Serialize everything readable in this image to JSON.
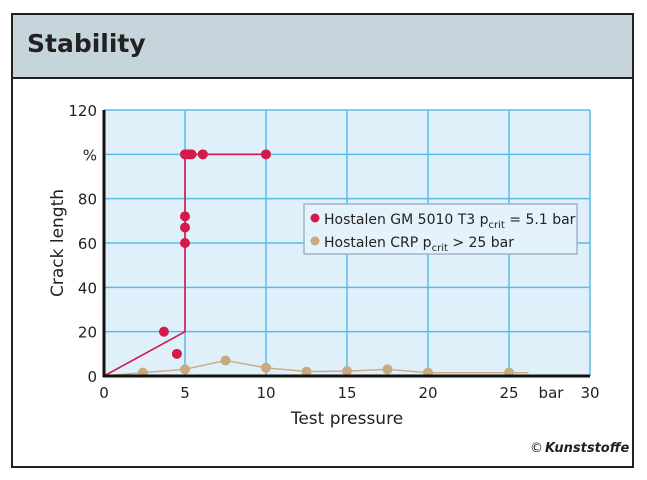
{
  "header": {
    "title": "Stability"
  },
  "copyright": {
    "symbol": "©",
    "brand": "Kunststoffe"
  },
  "chart_data": {
    "type": "scatter",
    "title": "",
    "xlabel": "Test pressure",
    "ylabel": "Crack length",
    "x_unit_label": "bar",
    "y_unit_label": "%",
    "xlim": [
      0,
      30
    ],
    "ylim": [
      0,
      120
    ],
    "x_ticks": [
      "0",
      "5",
      "10",
      "15",
      "20",
      "25",
      "30"
    ],
    "x_tick_values": [
      0,
      5,
      10,
      15,
      20,
      25,
      30
    ],
    "y_ticks": [
      "0",
      "20",
      "40",
      "60",
      "80",
      "%",
      "120"
    ],
    "y_tick_values": [
      0,
      20,
      40,
      60,
      80,
      100,
      120
    ],
    "grid": true,
    "plot_background": "#dff0fa",
    "grid_color": "#5bbde6",
    "legend_position": "center-right",
    "series": [
      {
        "name": "Hostalen GM 5010 T3",
        "legend_sub": "crit",
        "legend_rest": "= 5.1 bar",
        "color": "#d4194b",
        "points": [
          [
            5,
            100
          ],
          [
            5.2,
            100
          ],
          [
            5.4,
            100
          ],
          [
            6.1,
            100
          ],
          [
            10,
            100
          ],
          [
            5,
            72
          ],
          [
            5,
            67
          ],
          [
            5,
            60
          ],
          [
            3.7,
            20
          ],
          [
            4.5,
            10
          ]
        ],
        "line": [
          [
            0,
            0
          ],
          [
            5,
            20
          ],
          [
            5,
            100
          ],
          [
            10,
            100
          ]
        ]
      },
      {
        "name": "Hostalen CRP",
        "legend_sub": "crit",
        "legend_rest": "> 25 bar",
        "color": "#c9a97e",
        "points": [
          [
            2.4,
            1.5
          ],
          [
            5,
            3
          ],
          [
            7.5,
            7
          ],
          [
            10,
            3.7
          ],
          [
            12.5,
            2
          ],
          [
            15,
            2.2
          ],
          [
            17.5,
            3
          ],
          [
            20,
            1.5
          ],
          [
            25,
            1.5
          ]
        ],
        "line": [
          [
            0,
            0
          ],
          [
            2.4,
            1.5
          ],
          [
            5,
            3
          ],
          [
            7.5,
            7
          ],
          [
            10,
            3.7
          ],
          [
            12.5,
            2
          ],
          [
            15,
            2.2
          ],
          [
            17.5,
            3
          ],
          [
            20,
            1.5
          ],
          [
            25,
            1.5
          ],
          [
            26.2,
            1.5
          ]
        ]
      }
    ]
  }
}
